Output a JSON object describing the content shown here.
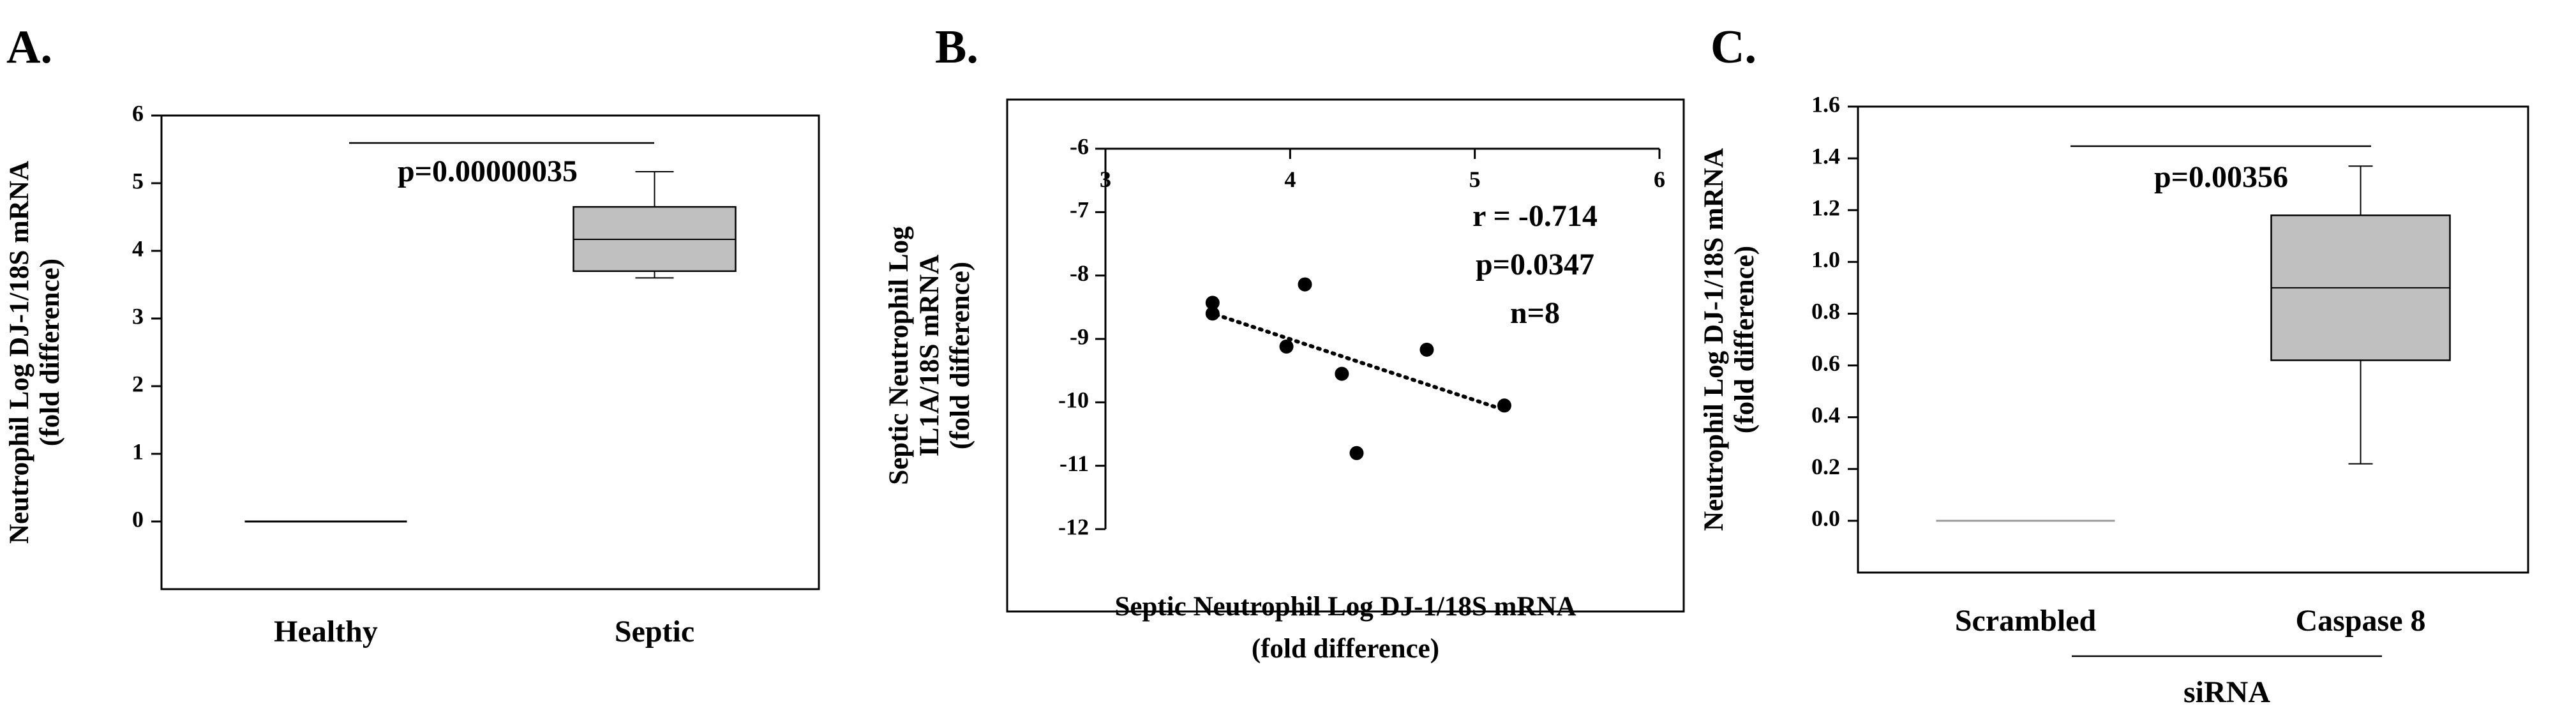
{
  "chart_data": [
    {
      "type": "box",
      "label": "A.",
      "title": "",
      "ylabel": "Neutrophil Log DJ-1/18S mRNA (fold difference)",
      "ylabel_lines": [
        "Neutrophil Log DJ-1/18S mRNA",
        "(fold difference)"
      ],
      "xlabel": "",
      "ylim": [
        -1,
        6
      ],
      "yticks": [
        0,
        1,
        2,
        3,
        4,
        5,
        6
      ],
      "yticklabels": [
        "0",
        "1",
        "2",
        "3",
        "4",
        "5",
        "6"
      ],
      "categories": [
        "Healthy",
        "Septic"
      ],
      "boxes": [
        {
          "category": "Healthy",
          "min": 0,
          "q1": 0,
          "median": 0,
          "q3": 0,
          "max": 0
        },
        {
          "category": "Septic",
          "min": 3.6,
          "q1": 3.7,
          "median": 4.17,
          "q3": 4.65,
          "max": 5.17
        }
      ],
      "annotation": "p=0.00000035",
      "box_fill": "#c0c0c0"
    },
    {
      "type": "scatter",
      "label": "B.",
      "title": "",
      "xlabel": "Septic Neutrophil Log DJ-1/18S mRNA (fold difference)",
      "xlabel_lines": [
        "Septic Neutrophil  Log DJ-1/18S mRNA",
        "(fold difference)"
      ],
      "ylabel": "Septic Neutrophil Log IL1A/18S mRNA (fold difference)",
      "ylabel_lines": [
        "Septic Neutrophil Log",
        "IL1A/18S mRNA",
        "(fold difference)"
      ],
      "xlim": [
        3,
        6
      ],
      "ylim": [
        -12,
        -6
      ],
      "xticks": [
        3,
        4,
        5,
        6
      ],
      "xticklabels": [
        "3",
        "4",
        "5",
        "6"
      ],
      "yticks": [
        -6,
        -7,
        -8,
        -9,
        -10,
        -11,
        -12
      ],
      "yticklabels": [
        "-6",
        "-7",
        "-8",
        "-9",
        "-10",
        "-11",
        "-12"
      ],
      "points": [
        {
          "x": 3.58,
          "y": -8.43
        },
        {
          "x": 3.58,
          "y": -8.6
        },
        {
          "x": 3.98,
          "y": -9.12
        },
        {
          "x": 4.08,
          "y": -8.14
        },
        {
          "x": 4.28,
          "y": -9.55
        },
        {
          "x": 4.36,
          "y": -10.8
        },
        {
          "x": 4.74,
          "y": -9.17
        },
        {
          "x": 5.16,
          "y": -10.05
        }
      ],
      "trendline": {
        "x": [
          3.56,
          5.16
        ],
        "y": [
          -8.58,
          -10.12
        ],
        "style": "dotted"
      },
      "annotations": [
        "r = -0.714",
        "p=0.0347",
        "n=8"
      ]
    },
    {
      "type": "box",
      "label": "C.",
      "title": "",
      "ylabel": "Neutrophil Log DJ-1/18S mRNA (fold difference)",
      "ylabel_lines": [
        "Neutrophil Log DJ-1/18S mRNA",
        "(fold difference)"
      ],
      "xlabel": "siRNA",
      "ylim": [
        -0.2,
        1.6
      ],
      "yticks": [
        0.0,
        0.2,
        0.4,
        0.6,
        0.8,
        1.0,
        1.2,
        1.4,
        1.6
      ],
      "yticklabels": [
        "0.0",
        "0.2",
        "0.4",
        "0.6",
        "0.8",
        "1.0",
        "1.2",
        "1.4",
        "1.6"
      ],
      "categories": [
        "Scrambled",
        "Caspase 8"
      ],
      "boxes": [
        {
          "category": "Scrambled",
          "min": 0,
          "q1": 0,
          "median": 0,
          "q3": 0,
          "max": 0
        },
        {
          "category": "Caspase 8",
          "min": 0.22,
          "q1": 0.62,
          "median": 0.9,
          "q3": 1.18,
          "max": 1.37
        }
      ],
      "annotation": "p=0.00356",
      "box_fill": "#c0c0c0"
    }
  ]
}
